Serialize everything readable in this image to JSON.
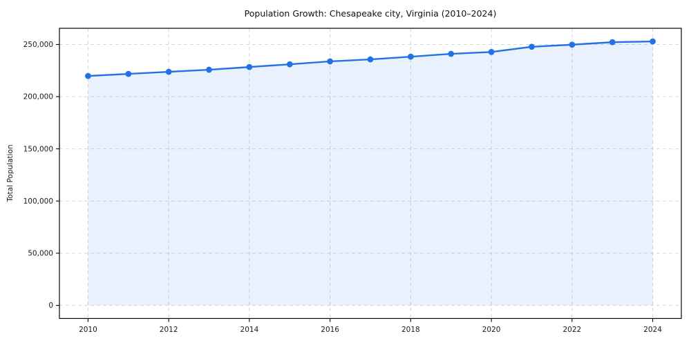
{
  "chart_data": {
    "type": "line",
    "title": "Population Growth: Chesapeake city, Virginia (2010–2024)",
    "xlabel": "",
    "ylabel": "Total Population",
    "x": [
      2010,
      2011,
      2012,
      2013,
      2014,
      2015,
      2016,
      2017,
      2018,
      2019,
      2020,
      2021,
      2022,
      2023,
      2024
    ],
    "series": [
      {
        "name": "Total Population",
        "values": [
          219800,
          221800,
          223800,
          225800,
          228400,
          231000,
          233800,
          235700,
          238300,
          241000,
          242800,
          247800,
          249800,
          252200,
          252900
        ]
      }
    ],
    "xticks": [
      2010,
      2012,
      2014,
      2016,
      2018,
      2020,
      2022,
      2024
    ],
    "xtick_labels": [
      "2010",
      "2012",
      "2014",
      "2016",
      "2018",
      "2020",
      "2022",
      "2024"
    ],
    "yticks": [
      0,
      50000,
      100000,
      150000,
      200000,
      250000
    ],
    "ytick_labels": [
      "0",
      "50,000",
      "100,000",
      "150,000",
      "200,000",
      "250,000"
    ],
    "xlim": [
      2009.29,
      2024.71
    ],
    "ylim": [
      -12500,
      265500
    ],
    "grid": true,
    "grid_style": "dashed",
    "legend_position": "none",
    "area_fill": true,
    "area_baseline": 0,
    "marker": "circle",
    "colors": {
      "line": "#2272e5",
      "marker": "#2272e5",
      "fill": "rgba(34,114,229,0.10)",
      "grid": "#d6d6d6",
      "frame": "#000000"
    }
  }
}
